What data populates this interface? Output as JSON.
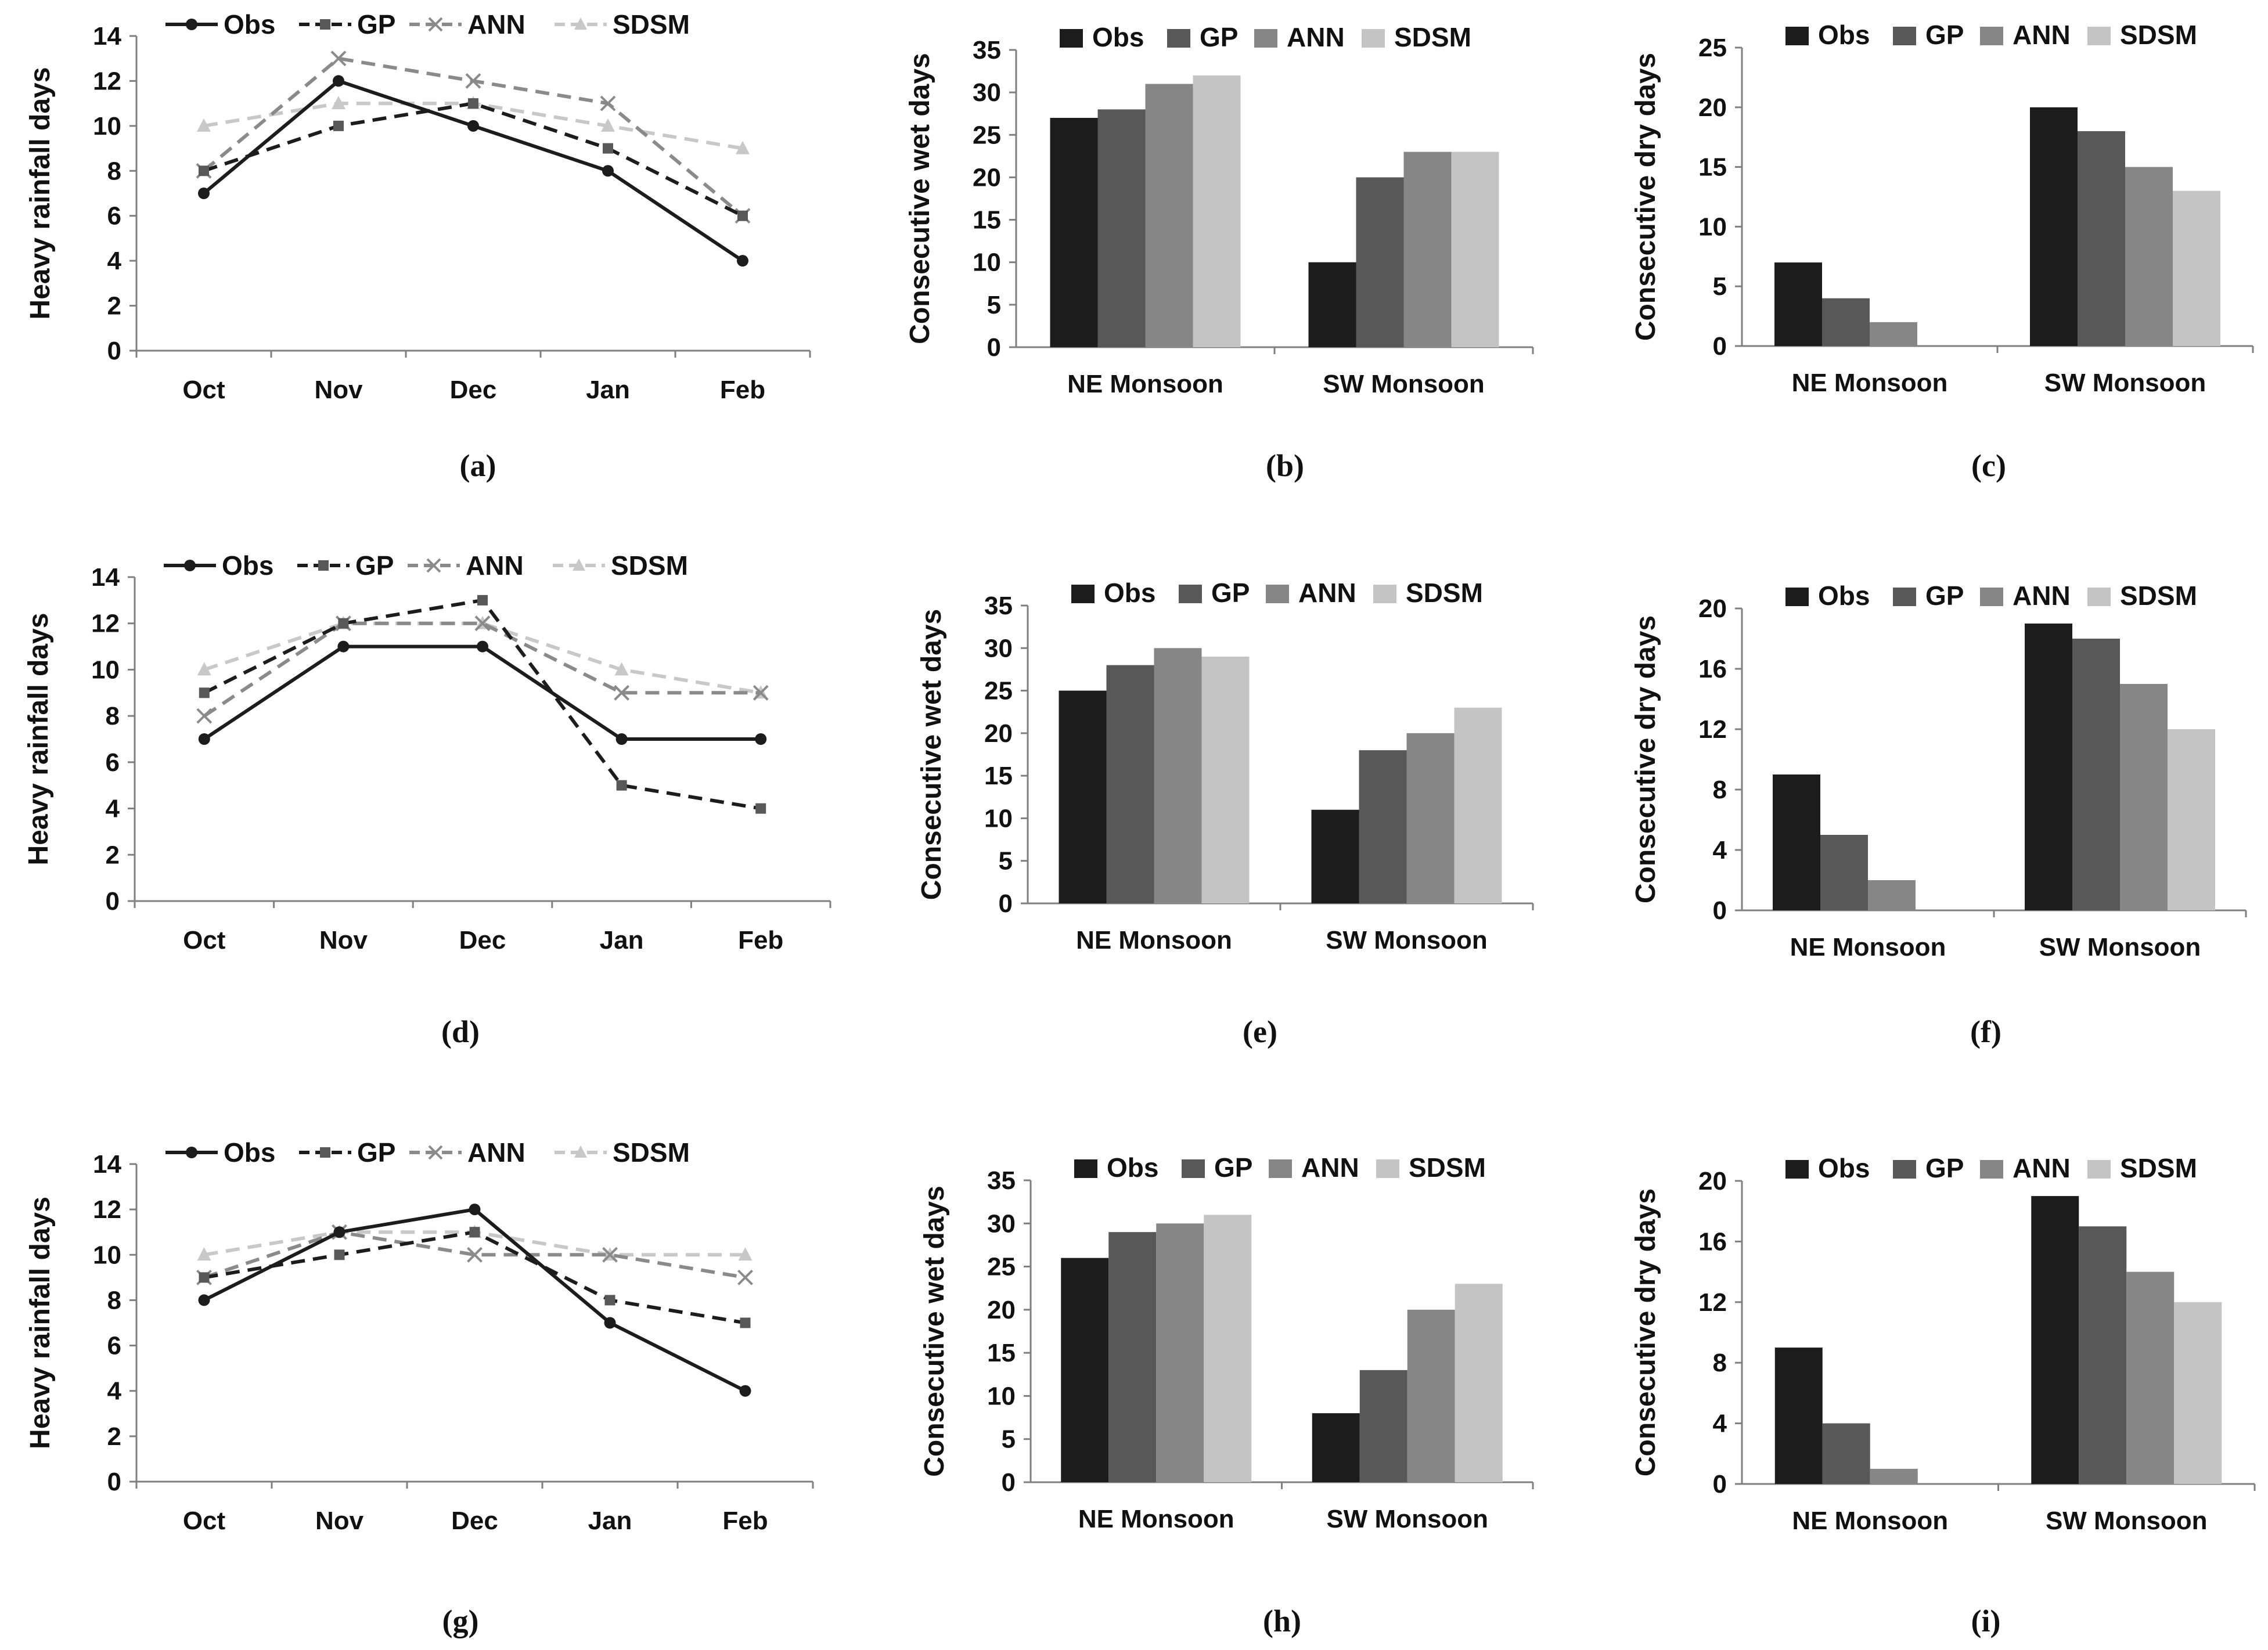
{
  "colors": {
    "obs": "#1c1c1c",
    "gp": "#585858",
    "ann": "#868686",
    "sdsm": "#c4c4c4",
    "ann_line": "#8a8a8a",
    "sdsm_line": "#c8c8c8",
    "axis": "#7f7f7f"
  },
  "chart_data": [
    {
      "panel": "a",
      "caption": "(a)",
      "type": "line",
      "categories": [
        "Oct",
        "Nov",
        "Dec",
        "Jan",
        "Feb"
      ],
      "ylabel": "Heavy rainfall days",
      "ylim": [
        0,
        14
      ],
      "yticks": [
        "0",
        "2",
        "4",
        "6",
        "8",
        "10",
        "12",
        "14"
      ],
      "series": [
        {
          "name": "Obs",
          "values": [
            7,
            12,
            10,
            8,
            4
          ]
        },
        {
          "name": "GP",
          "values": [
            8,
            10,
            11,
            9,
            6
          ]
        },
        {
          "name": "ANN",
          "values": [
            8,
            13,
            12,
            11,
            6
          ]
        },
        {
          "name": "SDSM",
          "values": [
            10,
            11,
            11,
            10,
            9
          ]
        }
      ]
    },
    {
      "panel": "b",
      "caption": "(b)",
      "type": "bar",
      "categories": [
        "NE Monsoon",
        "SW Monsoon"
      ],
      "ylabel": "Consecutive wet days",
      "ylim": [
        0,
        35
      ],
      "yticks": [
        "0",
        "5",
        "10",
        "15",
        "20",
        "25",
        "30",
        "35"
      ],
      "series": [
        {
          "name": "Obs",
          "values": [
            27,
            10
          ]
        },
        {
          "name": "GP",
          "values": [
            28,
            20
          ]
        },
        {
          "name": "ANN",
          "values": [
            31,
            23
          ]
        },
        {
          "name": "SDSM",
          "values": [
            32,
            23
          ]
        }
      ]
    },
    {
      "panel": "c",
      "caption": "(c)",
      "type": "bar",
      "categories": [
        "NE Monsoon",
        "SW Monsoon"
      ],
      "ylabel": "Consecutive dry days",
      "ylim": [
        0,
        25
      ],
      "yticks": [
        "0",
        "5",
        "10",
        "15",
        "20",
        "25"
      ],
      "series": [
        {
          "name": "Obs",
          "values": [
            7,
            20
          ]
        },
        {
          "name": "GP",
          "values": [
            4,
            18
          ]
        },
        {
          "name": "ANN",
          "values": [
            2,
            15
          ]
        },
        {
          "name": "SDSM",
          "values": [
            0,
            13
          ]
        }
      ]
    },
    {
      "panel": "d",
      "caption": "(d)",
      "type": "line",
      "categories": [
        "Oct",
        "Nov",
        "Dec",
        "Jan",
        "Feb"
      ],
      "ylabel": "Heavy rainfall days",
      "ylim": [
        0,
        14
      ],
      "yticks": [
        "0",
        "2",
        "4",
        "6",
        "8",
        "10",
        "12",
        "14"
      ],
      "series": [
        {
          "name": "Obs",
          "values": [
            7,
            11,
            11,
            7,
            7
          ]
        },
        {
          "name": "GP",
          "values": [
            9,
            12,
            13,
            5,
            4
          ]
        },
        {
          "name": "ANN",
          "values": [
            8,
            12,
            12,
            9,
            9
          ]
        },
        {
          "name": "SDSM",
          "values": [
            10,
            12,
            12,
            10,
            9
          ]
        }
      ]
    },
    {
      "panel": "e",
      "caption": "(e)",
      "type": "bar",
      "categories": [
        "NE Monsoon",
        "SW Monsoon"
      ],
      "ylabel": "Consecutive wet days",
      "ylim": [
        0,
        35
      ],
      "yticks": [
        "0",
        "5",
        "10",
        "15",
        "20",
        "25",
        "30",
        "35"
      ],
      "series": [
        {
          "name": "Obs",
          "values": [
            25,
            11
          ]
        },
        {
          "name": "GP",
          "values": [
            28,
            18
          ]
        },
        {
          "name": "ANN",
          "values": [
            30,
            20
          ]
        },
        {
          "name": "SDSM",
          "values": [
            29,
            23
          ]
        }
      ]
    },
    {
      "panel": "f",
      "caption": "(f)",
      "type": "bar",
      "categories": [
        "NE Monsoon",
        "SW Monsoon"
      ],
      "ylabel": "Consecutive dry days",
      "ylim": [
        0,
        20
      ],
      "yticks": [
        "0",
        "4",
        "8",
        "12",
        "16",
        "20"
      ],
      "series": [
        {
          "name": "Obs",
          "values": [
            9,
            19
          ]
        },
        {
          "name": "GP",
          "values": [
            5,
            18
          ]
        },
        {
          "name": "ANN",
          "values": [
            2,
            15
          ]
        },
        {
          "name": "SDSM",
          "values": [
            0,
            12
          ]
        }
      ]
    },
    {
      "panel": "g",
      "caption": "(g)",
      "type": "line",
      "categories": [
        "Oct",
        "Nov",
        "Dec",
        "Jan",
        "Feb"
      ],
      "ylabel": "Heavy rainfall days",
      "ylim": [
        0,
        14
      ],
      "yticks": [
        "0",
        "2",
        "4",
        "6",
        "8",
        "10",
        "12",
        "14"
      ],
      "series": [
        {
          "name": "Obs",
          "values": [
            8,
            11,
            12,
            7,
            4
          ]
        },
        {
          "name": "GP",
          "values": [
            9,
            10,
            11,
            8,
            7
          ]
        },
        {
          "name": "ANN",
          "values": [
            9,
            11,
            10,
            10,
            9
          ]
        },
        {
          "name": "SDSM",
          "values": [
            10,
            11,
            11,
            10,
            10
          ]
        }
      ]
    },
    {
      "panel": "h",
      "caption": "(h)",
      "type": "bar",
      "categories": [
        "NE Monsoon",
        "SW Monsoon"
      ],
      "ylabel": "Consecutive wet days",
      "ylim": [
        0,
        35
      ],
      "yticks": [
        "0",
        "5",
        "10",
        "15",
        "20",
        "25",
        "30",
        "35"
      ],
      "series": [
        {
          "name": "Obs",
          "values": [
            26,
            8
          ]
        },
        {
          "name": "GP",
          "values": [
            29,
            13
          ]
        },
        {
          "name": "ANN",
          "values": [
            30,
            20
          ]
        },
        {
          "name": "SDSM",
          "values": [
            31,
            23
          ]
        }
      ]
    },
    {
      "panel": "i",
      "caption": "(i)",
      "type": "bar",
      "categories": [
        "NE Monsoon",
        "SW Monsoon"
      ],
      "ylabel": "Consecutive dry days",
      "ylim": [
        0,
        20
      ],
      "yticks": [
        "0",
        "4",
        "8",
        "12",
        "16",
        "20"
      ],
      "series": [
        {
          "name": "Obs",
          "values": [
            9,
            19
          ]
        },
        {
          "name": "GP",
          "values": [
            4,
            17
          ]
        },
        {
          "name": "ANN",
          "values": [
            1,
            14
          ]
        },
        {
          "name": "SDSM",
          "values": [
            0,
            12
          ]
        }
      ]
    }
  ]
}
